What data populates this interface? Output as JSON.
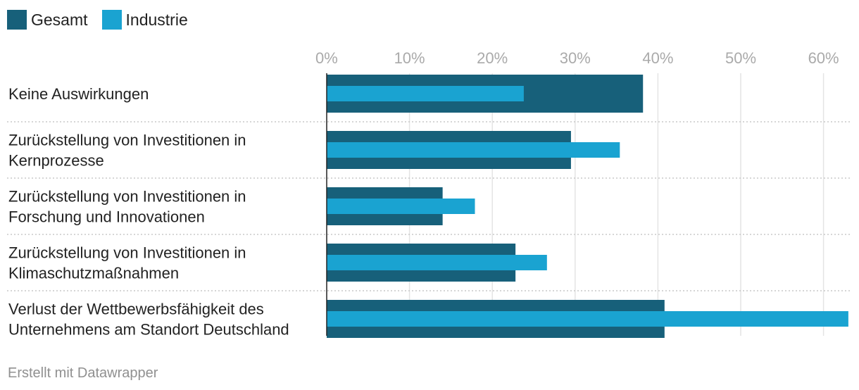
{
  "chart_data": {
    "type": "bar",
    "orientation": "horizontal",
    "legend_position": "top-left",
    "grid": true,
    "xlim": [
      0,
      63
    ],
    "x_ticks": [
      0,
      10,
      20,
      30,
      40,
      50,
      60
    ],
    "x_tick_labels": [
      "0%",
      "10%",
      "20%",
      "30%",
      "40%",
      "50%",
      "60%"
    ],
    "categories": [
      [
        "Keine Auswirkungen"
      ],
      [
        "Zurückstellung von Investitionen in",
        "Kernprozesse"
      ],
      [
        "Zurückstellung von Investitionen in",
        "Forschung und Innovationen"
      ],
      [
        "Zurückstellung von Investitionen in",
        "Klimaschutzmaßnahmen"
      ],
      [
        "Verlust der Wettbewerbsfähigkeit des",
        "Unternehmens am Standort Deutschland"
      ]
    ],
    "series": [
      {
        "name": "Gesamt",
        "color": "#17607a",
        "values": [
          38.2,
          29.5,
          14.0,
          22.8,
          40.8
        ]
      },
      {
        "name": "Industrie",
        "color": "#1aa3d1",
        "values": [
          23.8,
          35.4,
          17.9,
          26.6,
          63.5
        ]
      }
    ],
    "title": "",
    "xlabel": "",
    "ylabel": ""
  },
  "legend": {
    "items": [
      {
        "label": "Gesamt",
        "color": "#17607a"
      },
      {
        "label": "Industrie",
        "color": "#1aa3d1"
      }
    ]
  },
  "footer": {
    "credit": "Erstellt mit Datawrapper"
  }
}
